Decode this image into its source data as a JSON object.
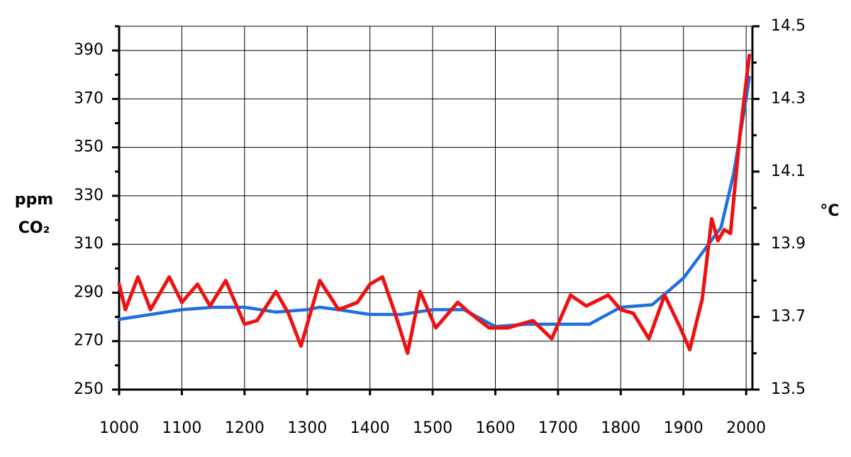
{
  "chart_data": {
    "type": "line",
    "y_label": [
      "ppm",
      "CO₂"
    ],
    "y2_label": "°C",
    "xlim": [
      1000,
      2010
    ],
    "xticks": [
      1000,
      1100,
      1200,
      1300,
      1400,
      1500,
      1600,
      1700,
      1800,
      1900,
      2000
    ],
    "ylim": [
      250,
      400
    ],
    "yticks": [
      250,
      270,
      290,
      310,
      330,
      350,
      370,
      390
    ],
    "yminor": [
      260,
      280,
      300,
      320,
      340,
      360,
      380,
      400
    ],
    "y2lim": [
      13.5,
      14.5
    ],
    "y2ticks": [
      13.5,
      13.7,
      13.9,
      14.1,
      14.3,
      14.5
    ],
    "y2minor": [
      13.6,
      13.8,
      14.0,
      14.2,
      14.4
    ],
    "grid": true,
    "series": [
      {
        "color": "#1f6fe0",
        "x": [
          1000,
          1050,
          1100,
          1150,
          1200,
          1250,
          1300,
          1320,
          1350,
          1400,
          1450,
          1500,
          1550,
          1600,
          1650,
          1700,
          1750,
          1800,
          1850,
          1900,
          1920,
          1940,
          1960,
          1980,
          2000,
          2005
        ],
        "values": [
          279,
          281,
          283,
          284,
          284,
          282,
          283,
          284,
          283,
          281,
          281,
          283,
          283,
          276,
          277,
          277,
          277,
          284,
          285,
          296,
          303,
          310,
          317,
          339,
          370,
          379
        ]
      },
      {
        "color": "#ee1111",
        "axis": "y2",
        "x": [
          1000,
          1010,
          1030,
          1050,
          1080,
          1100,
          1125,
          1145,
          1170,
          1200,
          1220,
          1250,
          1270,
          1290,
          1320,
          1350,
          1380,
          1400,
          1420,
          1440,
          1460,
          1480,
          1505,
          1540,
          1560,
          1590,
          1620,
          1660,
          1690,
          1720,
          1745,
          1780,
          1800,
          1820,
          1845,
          1870,
          1895,
          1910,
          1930,
          1945,
          1955,
          1965,
          1975,
          1990,
          2005
        ],
        "values": [
          13.79,
          13.72,
          13.81,
          13.72,
          13.81,
          13.74,
          13.79,
          13.73,
          13.8,
          13.68,
          13.69,
          13.77,
          13.71,
          13.62,
          13.8,
          13.72,
          13.74,
          13.79,
          13.81,
          13.71,
          13.6,
          13.77,
          13.67,
          13.74,
          13.71,
          13.67,
          13.67,
          13.69,
          13.64,
          13.76,
          13.73,
          13.76,
          13.72,
          13.71,
          13.64,
          13.76,
          13.67,
          13.61,
          13.75,
          13.97,
          13.91,
          13.94,
          13.93,
          14.2,
          14.42
        ]
      }
    ]
  }
}
